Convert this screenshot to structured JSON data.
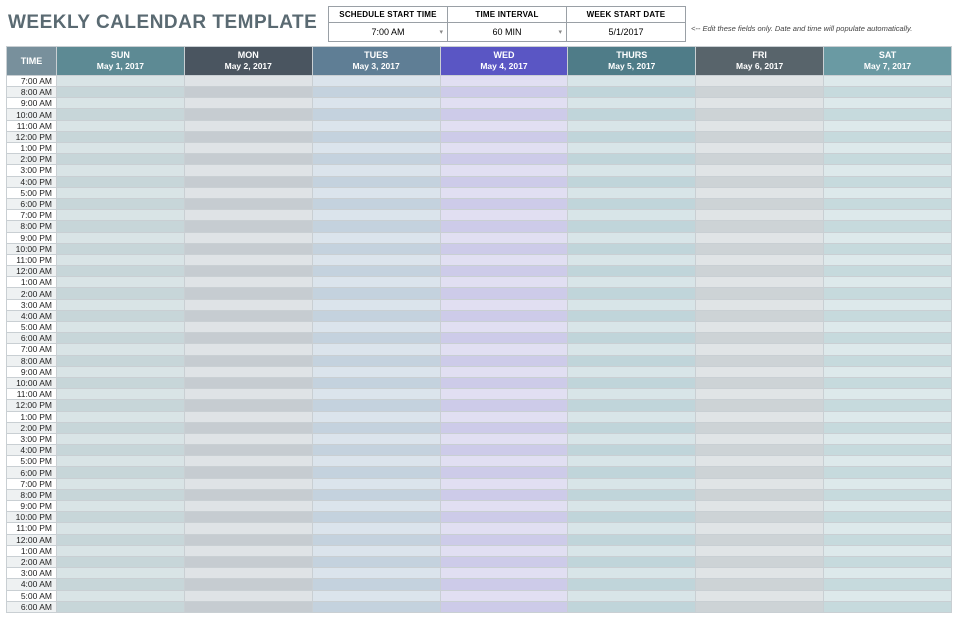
{
  "title": "WEEKLY CALENDAR TEMPLATE",
  "title_color": "#5a6a72",
  "controls": {
    "start_time": {
      "label": "SCHEDULE START TIME",
      "value": "7:00 AM",
      "has_dropdown": true
    },
    "interval": {
      "label": "TIME INTERVAL",
      "value": "60 MIN",
      "has_dropdown": true
    },
    "week_start": {
      "label": "WEEK START DATE",
      "value": "5/1/2017",
      "has_dropdown": false
    }
  },
  "hint_text": "<-- Edit these fields only. Date and time will populate automatically.",
  "time_header": "TIME",
  "time_header_bg": "#78909c",
  "days": [
    {
      "short": "SUN",
      "date": "May 1, 2017",
      "header_bg": "#5d8a94",
      "cell_bg": "#d9e4e6",
      "cell_alt_bg": "#c7d6d9"
    },
    {
      "short": "MON",
      "date": "May 2, 2017",
      "header_bg": "#4a5560",
      "cell_bg": "#dfe3e6",
      "cell_alt_bg": "#c6ccd1"
    },
    {
      "short": "TUES",
      "date": "May 3, 2017",
      "header_bg": "#5f7e95",
      "cell_bg": "#dbe4ec",
      "cell_alt_bg": "#c4d2de"
    },
    {
      "short": "WED",
      "date": "May 4, 2017",
      "header_bg": "#5a56c4",
      "cell_bg": "#e1dff2",
      "cell_alt_bg": "#cdcbe9"
    },
    {
      "short": "THURS",
      "date": "May 5, 2017",
      "header_bg": "#4f7c88",
      "cell_bg": "#d8e5e8",
      "cell_alt_bg": "#c0d5da"
    },
    {
      "short": "FRI",
      "date": "May 6, 2017",
      "header_bg": "#58646b",
      "cell_bg": "#e0e4e6",
      "cell_alt_bg": "#cdd3d6"
    },
    {
      "short": "SAT",
      "date": "May 7, 2017",
      "header_bg": "#6a9aa3",
      "cell_bg": "#dde9eb",
      "cell_alt_bg": "#c6dadd"
    }
  ],
  "time_slots": [
    "7:00 AM",
    "8:00 AM",
    "9:00 AM",
    "10:00 AM",
    "11:00 AM",
    "12:00 PM",
    "1:00 PM",
    "2:00 PM",
    "3:00 PM",
    "4:00 PM",
    "5:00 PM",
    "6:00 PM",
    "7:00 PM",
    "8:00 PM",
    "9:00 PM",
    "10:00 PM",
    "11:00 PM",
    "12:00 AM",
    "1:00 AM",
    "2:00 AM",
    "3:00 AM",
    "4:00 AM",
    "5:00 AM",
    "6:00 AM",
    "7:00 AM",
    "8:00 AM",
    "9:00 AM",
    "10:00 AM",
    "11:00 AM",
    "12:00 PM",
    "1:00 PM",
    "2:00 PM",
    "3:00 PM",
    "4:00 PM",
    "5:00 PM",
    "6:00 PM",
    "7:00 PM",
    "8:00 PM",
    "9:00 PM",
    "10:00 PM",
    "11:00 PM",
    "12:00 AM",
    "1:00 AM",
    "2:00 AM",
    "3:00 AM",
    "4:00 AM",
    "5:00 AM",
    "6:00 AM"
  ],
  "time_cell_alt_bg": "#eef1f2",
  "grid_border_color": "#c9cfd3",
  "dropdown_chevron": "▾"
}
